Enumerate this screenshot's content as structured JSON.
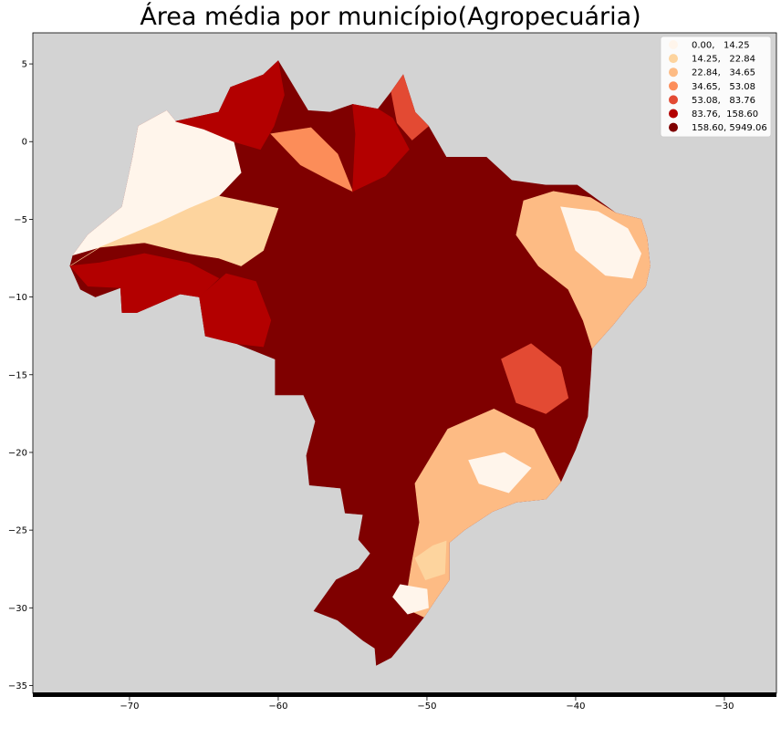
{
  "title": "Área média por município(Agropecuária)",
  "chart_data": {
    "type": "choropleth-map",
    "title": "Área média por município(Agropecuária)",
    "xlim": [
      -76.5,
      -26.5
    ],
    "ylim": [
      -35.5,
      7.0
    ],
    "x_ticks": [
      -70,
      -60,
      -50,
      -40,
      -30
    ],
    "y_ticks": [
      5,
      0,
      -5,
      -10,
      -15,
      -20,
      -25,
      -30,
      -35
    ],
    "x_tick_labels": [
      "−70",
      "−60",
      "−50",
      "−40",
      "−30"
    ],
    "y_tick_labels": [
      "5",
      "0",
      "−5",
      "−10",
      "−15",
      "−20",
      "−25",
      "−30",
      "−35"
    ],
    "background_color": "#d3d3d3",
    "legend_position": "top-right",
    "legend": [
      {
        "label": "0.00,   14.25",
        "color": "#fff5eb"
      },
      {
        "label": "14.25,   22.84",
        "color": "#fdd49e"
      },
      {
        "label": "22.84,   34.65",
        "color": "#fdbb84"
      },
      {
        "label": "34.65,   53.08",
        "color": "#fc8d59"
      },
      {
        "label": "53.08,   83.76",
        "color": "#e34a33"
      },
      {
        "label": "83.76,  158.60",
        "color": "#b30000"
      },
      {
        "label": "158.60, 5949.06",
        "color": "#7f0000"
      }
    ]
  }
}
